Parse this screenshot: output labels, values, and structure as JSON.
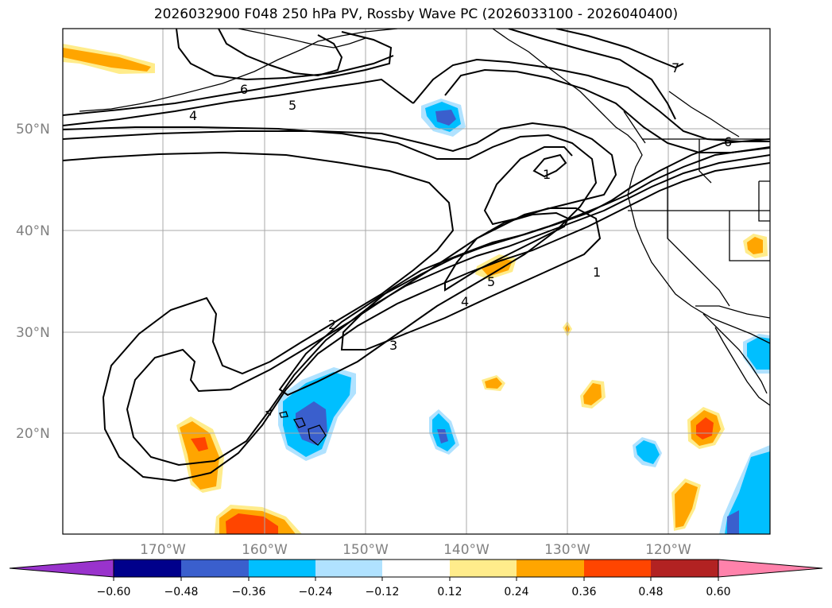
{
  "title": "2026032900 F048 250 hPa PV, Rossby Wave PC (2026033100 - 2026040400)",
  "lat_labels": [
    "50°N",
    "40°N",
    "30°N",
    "20°N"
  ],
  "lon_labels": [
    "170°W",
    "160°W",
    "150°W",
    "140°W",
    "130°W",
    "120°W"
  ],
  "contour_labels": [
    "6",
    "5",
    "4",
    "1",
    "2",
    "3",
    "4",
    "5",
    "1",
    "6",
    "7"
  ],
  "colorbar": {
    "ticks": [
      "−0.60",
      "−0.48",
      "−0.36",
      "−0.24",
      "−0.12",
      "0.12",
      "0.24",
      "0.36",
      "0.48",
      "0.60"
    ],
    "colors": [
      "#9933cc",
      "#00008b",
      "#3a5fcd",
      "#00bfff",
      "#b0e2ff",
      "#ffffff",
      "#ffec8b",
      "#ffa500",
      "#ff4500",
      "#b22222",
      "#ff82ab",
      "#ff82ab"
    ]
  },
  "fill_colors": {
    "light_orange": "#ffec8b",
    "orange": "#ffa500",
    "red_orange": "#ff4500",
    "light_blue": "#b0e2ff",
    "deep_sky_blue": "#00bfff",
    "royal_blue": "#3a5fcd"
  }
}
